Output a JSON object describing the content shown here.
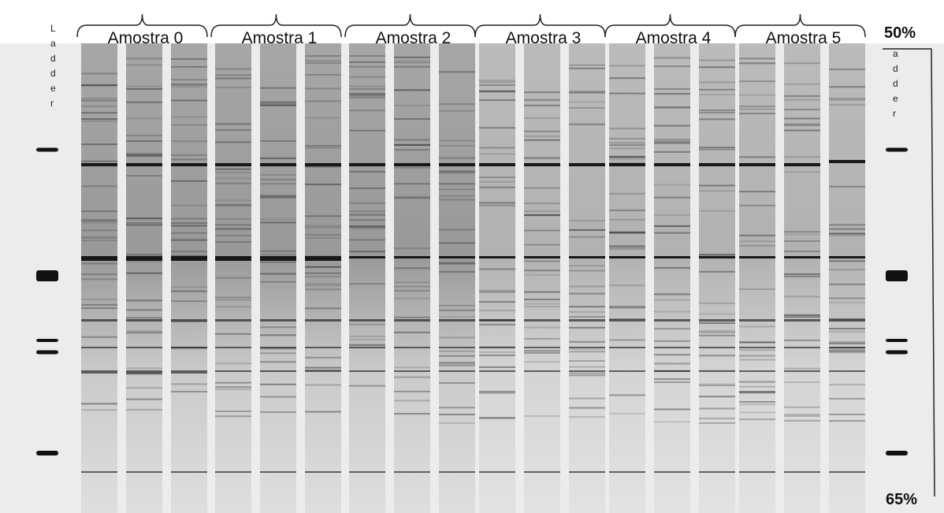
{
  "ladder_left": "Ladder",
  "ladder_right": "adder",
  "groups": [
    "Amostra 0",
    "Amostra 1",
    "Amostra 2",
    "Amostra 3",
    "Amostra 4",
    "Amostra 5"
  ],
  "gradient": {
    "top": "50%",
    "bottom": "65%"
  }
}
